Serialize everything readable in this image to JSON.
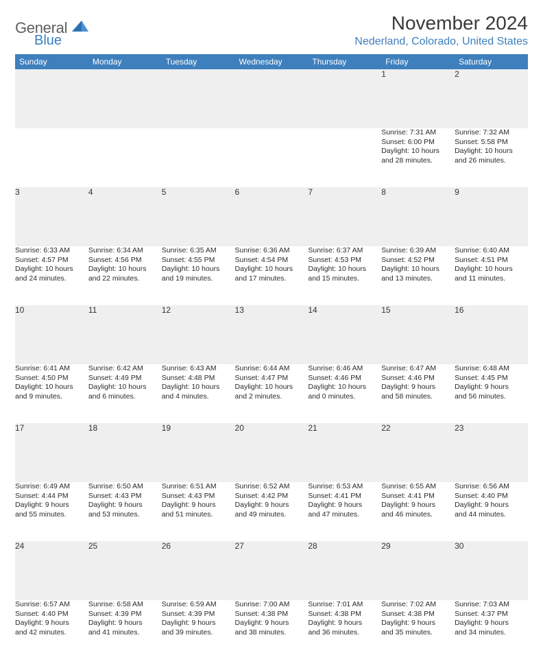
{
  "brand": {
    "name_part1": "General",
    "name_part2": "Blue",
    "accent_color": "#3a7ebf"
  },
  "title": {
    "month_year": "November 2024",
    "location": "Nederland, Colorado, United States"
  },
  "colors": {
    "header_bg": "#3e7fbd",
    "header_text": "#ffffff",
    "daynum_bg": "#efefef",
    "daynum_border_top": "#3e6a9a",
    "body_text": "#2a2a2a",
    "title_text": "#3a3a3a",
    "location_text": "#3e7fbd"
  },
  "weekdays": [
    "Sunday",
    "Monday",
    "Tuesday",
    "Wednesday",
    "Thursday",
    "Friday",
    "Saturday"
  ],
  "weeks": [
    [
      null,
      null,
      null,
      null,
      null,
      {
        "day": "1",
        "sunrise": "Sunrise: 7:31 AM",
        "sunset": "Sunset: 6:00 PM",
        "daylight1": "Daylight: 10 hours",
        "daylight2": "and 28 minutes."
      },
      {
        "day": "2",
        "sunrise": "Sunrise: 7:32 AM",
        "sunset": "Sunset: 5:58 PM",
        "daylight1": "Daylight: 10 hours",
        "daylight2": "and 26 minutes."
      }
    ],
    [
      {
        "day": "3",
        "sunrise": "Sunrise: 6:33 AM",
        "sunset": "Sunset: 4:57 PM",
        "daylight1": "Daylight: 10 hours",
        "daylight2": "and 24 minutes."
      },
      {
        "day": "4",
        "sunrise": "Sunrise: 6:34 AM",
        "sunset": "Sunset: 4:56 PM",
        "daylight1": "Daylight: 10 hours",
        "daylight2": "and 22 minutes."
      },
      {
        "day": "5",
        "sunrise": "Sunrise: 6:35 AM",
        "sunset": "Sunset: 4:55 PM",
        "daylight1": "Daylight: 10 hours",
        "daylight2": "and 19 minutes."
      },
      {
        "day": "6",
        "sunrise": "Sunrise: 6:36 AM",
        "sunset": "Sunset: 4:54 PM",
        "daylight1": "Daylight: 10 hours",
        "daylight2": "and 17 minutes."
      },
      {
        "day": "7",
        "sunrise": "Sunrise: 6:37 AM",
        "sunset": "Sunset: 4:53 PM",
        "daylight1": "Daylight: 10 hours",
        "daylight2": "and 15 minutes."
      },
      {
        "day": "8",
        "sunrise": "Sunrise: 6:39 AM",
        "sunset": "Sunset: 4:52 PM",
        "daylight1": "Daylight: 10 hours",
        "daylight2": "and 13 minutes."
      },
      {
        "day": "9",
        "sunrise": "Sunrise: 6:40 AM",
        "sunset": "Sunset: 4:51 PM",
        "daylight1": "Daylight: 10 hours",
        "daylight2": "and 11 minutes."
      }
    ],
    [
      {
        "day": "10",
        "sunrise": "Sunrise: 6:41 AM",
        "sunset": "Sunset: 4:50 PM",
        "daylight1": "Daylight: 10 hours",
        "daylight2": "and 9 minutes."
      },
      {
        "day": "11",
        "sunrise": "Sunrise: 6:42 AM",
        "sunset": "Sunset: 4:49 PM",
        "daylight1": "Daylight: 10 hours",
        "daylight2": "and 6 minutes."
      },
      {
        "day": "12",
        "sunrise": "Sunrise: 6:43 AM",
        "sunset": "Sunset: 4:48 PM",
        "daylight1": "Daylight: 10 hours",
        "daylight2": "and 4 minutes."
      },
      {
        "day": "13",
        "sunrise": "Sunrise: 6:44 AM",
        "sunset": "Sunset: 4:47 PM",
        "daylight1": "Daylight: 10 hours",
        "daylight2": "and 2 minutes."
      },
      {
        "day": "14",
        "sunrise": "Sunrise: 6:46 AM",
        "sunset": "Sunset: 4:46 PM",
        "daylight1": "Daylight: 10 hours",
        "daylight2": "and 0 minutes."
      },
      {
        "day": "15",
        "sunrise": "Sunrise: 6:47 AM",
        "sunset": "Sunset: 4:46 PM",
        "daylight1": "Daylight: 9 hours",
        "daylight2": "and 58 minutes."
      },
      {
        "day": "16",
        "sunrise": "Sunrise: 6:48 AM",
        "sunset": "Sunset: 4:45 PM",
        "daylight1": "Daylight: 9 hours",
        "daylight2": "and 56 minutes."
      }
    ],
    [
      {
        "day": "17",
        "sunrise": "Sunrise: 6:49 AM",
        "sunset": "Sunset: 4:44 PM",
        "daylight1": "Daylight: 9 hours",
        "daylight2": "and 55 minutes."
      },
      {
        "day": "18",
        "sunrise": "Sunrise: 6:50 AM",
        "sunset": "Sunset: 4:43 PM",
        "daylight1": "Daylight: 9 hours",
        "daylight2": "and 53 minutes."
      },
      {
        "day": "19",
        "sunrise": "Sunrise: 6:51 AM",
        "sunset": "Sunset: 4:43 PM",
        "daylight1": "Daylight: 9 hours",
        "daylight2": "and 51 minutes."
      },
      {
        "day": "20",
        "sunrise": "Sunrise: 6:52 AM",
        "sunset": "Sunset: 4:42 PM",
        "daylight1": "Daylight: 9 hours",
        "daylight2": "and 49 minutes."
      },
      {
        "day": "21",
        "sunrise": "Sunrise: 6:53 AM",
        "sunset": "Sunset: 4:41 PM",
        "daylight1": "Daylight: 9 hours",
        "daylight2": "and 47 minutes."
      },
      {
        "day": "22",
        "sunrise": "Sunrise: 6:55 AM",
        "sunset": "Sunset: 4:41 PM",
        "daylight1": "Daylight: 9 hours",
        "daylight2": "and 46 minutes."
      },
      {
        "day": "23",
        "sunrise": "Sunrise: 6:56 AM",
        "sunset": "Sunset: 4:40 PM",
        "daylight1": "Daylight: 9 hours",
        "daylight2": "and 44 minutes."
      }
    ],
    [
      {
        "day": "24",
        "sunrise": "Sunrise: 6:57 AM",
        "sunset": "Sunset: 4:40 PM",
        "daylight1": "Daylight: 9 hours",
        "daylight2": "and 42 minutes."
      },
      {
        "day": "25",
        "sunrise": "Sunrise: 6:58 AM",
        "sunset": "Sunset: 4:39 PM",
        "daylight1": "Daylight: 9 hours",
        "daylight2": "and 41 minutes."
      },
      {
        "day": "26",
        "sunrise": "Sunrise: 6:59 AM",
        "sunset": "Sunset: 4:39 PM",
        "daylight1": "Daylight: 9 hours",
        "daylight2": "and 39 minutes."
      },
      {
        "day": "27",
        "sunrise": "Sunrise: 7:00 AM",
        "sunset": "Sunset: 4:38 PM",
        "daylight1": "Daylight: 9 hours",
        "daylight2": "and 38 minutes."
      },
      {
        "day": "28",
        "sunrise": "Sunrise: 7:01 AM",
        "sunset": "Sunset: 4:38 PM",
        "daylight1": "Daylight: 9 hours",
        "daylight2": "and 36 minutes."
      },
      {
        "day": "29",
        "sunrise": "Sunrise: 7:02 AM",
        "sunset": "Sunset: 4:38 PM",
        "daylight1": "Daylight: 9 hours",
        "daylight2": "and 35 minutes."
      },
      {
        "day": "30",
        "sunrise": "Sunrise: 7:03 AM",
        "sunset": "Sunset: 4:37 PM",
        "daylight1": "Daylight: 9 hours",
        "daylight2": "and 34 minutes."
      }
    ]
  ]
}
